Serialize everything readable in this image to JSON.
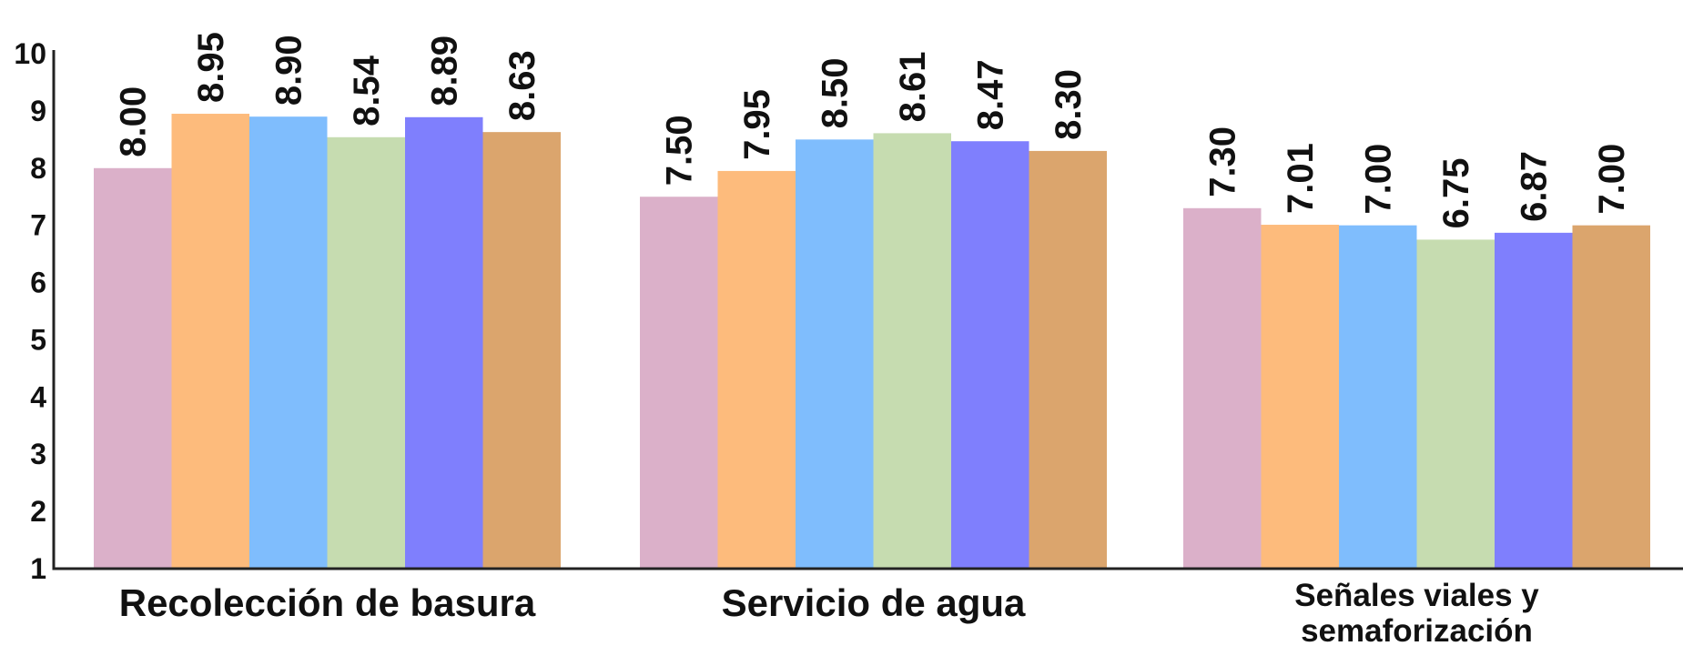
{
  "chart_data": {
    "type": "bar",
    "categories": [
      "Recolección de basura",
      "Servicio de agua",
      "Señales viales y semaforización"
    ],
    "series": [
      {
        "color": "#dbb0c9",
        "values": [
          8.0,
          7.5,
          7.3
        ],
        "value_labels": [
          "8.00",
          "7.50",
          "7.30"
        ]
      },
      {
        "color": "#fdbb7c",
        "values": [
          8.95,
          7.95,
          7.01
        ],
        "value_labels": [
          "8.95",
          "7.95",
          "7.01"
        ]
      },
      {
        "color": "#7fbdfd",
        "values": [
          8.9,
          8.5,
          7.0
        ],
        "value_labels": [
          "8.90",
          "8.50",
          "7.00"
        ]
      },
      {
        "color": "#c6dcb0",
        "values": [
          8.54,
          8.61,
          6.75
        ],
        "value_labels": [
          "8.54",
          "8.61",
          "6.75"
        ]
      },
      {
        "color": "#7f7ffd",
        "values": [
          8.89,
          8.47,
          6.87
        ],
        "value_labels": [
          "8.89",
          "8.47",
          "6.87"
        ]
      },
      {
        "color": "#dba56d",
        "values": [
          8.63,
          8.3,
          7.0
        ],
        "value_labels": [
          "8.63",
          "8.30",
          "7.00"
        ]
      }
    ],
    "ylim": [
      1,
      10
    ],
    "yticks": [
      1,
      2,
      3,
      4,
      5,
      6,
      7,
      8,
      9,
      10
    ],
    "grid": false
  }
}
